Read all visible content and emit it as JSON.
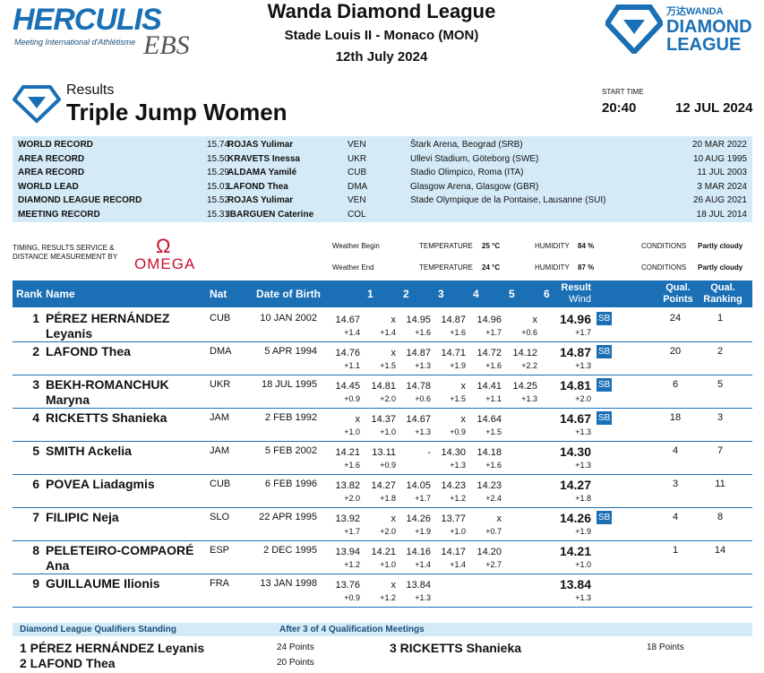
{
  "header": {
    "meeting_logo": "HERCULIS",
    "meeting_logo_sub": "Meeting International d'Athlétisme",
    "meeting_logo_ebs": "EBS",
    "league": "Wanda Diamond League",
    "venue": "Stade Louis II - Monaco (MON)",
    "date": "12th July 2024",
    "right_logo_wanda": "万达WANDA",
    "right_logo_line1": "DIAMOND",
    "right_logo_line2": "LEAGUE"
  },
  "event": {
    "results_label": "Results",
    "title": "Triple Jump Women",
    "start_time_label": "START TIME",
    "start_time": "20:40",
    "start_date": "12 JUL 2024"
  },
  "records": [
    {
      "name": "WORLD RECORD",
      "perf": "15.74",
      "athlete": "ROJAS Yulimar",
      "nat": "VEN",
      "venue": "Štark Arena, Beograd (SRB)",
      "date": "20 MAR 2022"
    },
    {
      "name": "AREA RECORD",
      "perf": "15.50",
      "athlete": "KRAVETS Inessa",
      "nat": "UKR",
      "venue": "Ullevi Stadium, Göteborg (SWE)",
      "date": "10 AUG 1995"
    },
    {
      "name": "AREA RECORD",
      "perf": "15.29",
      "athlete": "ALDAMA Yamilé",
      "nat": "CUB",
      "venue": "Stadio Olimpico, Roma (ITA)",
      "date": "11 JUL 2003"
    },
    {
      "name": "WORLD LEAD",
      "perf": "15.01",
      "athlete": "LAFOND Thea",
      "nat": "DMA",
      "venue": "Glasgow Arena, Glasgow (GBR)",
      "date": "3 MAR 2024"
    },
    {
      "name": "DIAMOND LEAGUE RECORD",
      "perf": "15.52",
      "athlete": "ROJAS Yulimar",
      "nat": "VEN",
      "venue": "Stade Olympique de la Pontaise, Lausanne (SUI)",
      "date": "26 AUG 2021"
    },
    {
      "name": "MEETING RECORD",
      "perf": "15.31",
      "athlete": "IBARGUEN Caterine",
      "nat": "COL",
      "venue": "",
      "date": "18 JUL 2014"
    }
  ],
  "timing": {
    "text": "TIMING, RESULTS SERVICE & DISTANCE MEASUREMENT BY",
    "omega": "OMEGA",
    "omega_symbol": "Ω"
  },
  "weather": {
    "begin_label": "Weather Begin",
    "end_label": "Weather End",
    "temp_label": "TEMPERATURE",
    "humidity_label": "HUMIDITY",
    "conditions_label": "CONDITIONS",
    "begin_temp": "25 °C",
    "begin_humidity": "84 %",
    "begin_conditions": "Partly cloudy",
    "end_temp": "24 °C",
    "end_humidity": "87 %",
    "end_conditions": "Partly cloudy"
  },
  "table_headers": {
    "rank": "Rank",
    "name": "Name",
    "nat": "Nat",
    "dob": "Date of Birth",
    "a1": "1",
    "a2": "2",
    "a3": "3",
    "a4": "4",
    "a5": "5",
    "a6": "6",
    "result": "Result",
    "wind": "Wind",
    "qual_points_1": "Qual.",
    "qual_points_2": "Points",
    "qual_rank_1": "Qual.",
    "qual_rank_2": "Ranking"
  },
  "athletes": [
    {
      "rank": "1",
      "name": "PÉREZ HERNÁNDEZ Leyanis",
      "nat": "CUB",
      "dob": "10 JAN 2002",
      "att": [
        "14.67",
        "x",
        "14.95",
        "14.87",
        "14.96",
        "x"
      ],
      "wind": [
        "+1.4",
        "+1.4",
        "+1.6",
        "+1.6",
        "+1.7",
        "+0.6"
      ],
      "result": "14.96",
      "rwind": "+1.7",
      "sb": "SB",
      "qp": "24",
      "qr": "1"
    },
    {
      "rank": "2",
      "name": "LAFOND Thea",
      "nat": "DMA",
      "dob": "5 APR 1994",
      "att": [
        "14.76",
        "x",
        "14.87",
        "14.71",
        "14.72",
        "14.12"
      ],
      "wind": [
        "+1.1",
        "+1.5",
        "+1.3",
        "+1.9",
        "+1.6",
        "+2.2"
      ],
      "result": "14.87",
      "rwind": "+1.3",
      "sb": "SB",
      "qp": "20",
      "qr": "2"
    },
    {
      "rank": "3",
      "name": "BEKH-ROMANCHUK Maryna",
      "nat": "UKR",
      "dob": "18 JUL 1995",
      "att": [
        "14.45",
        "14.81",
        "14.78",
        "x",
        "14.41",
        "14.25"
      ],
      "wind": [
        "+0.9",
        "+2.0",
        "+0.6",
        "+1.5",
        "+1.1",
        "+1.3"
      ],
      "result": "14.81",
      "rwind": "+2.0",
      "sb": "SB",
      "qp": "6",
      "qr": "5"
    },
    {
      "rank": "4",
      "name": "RICKETTS Shanieka",
      "nat": "JAM",
      "dob": "2 FEB 1992",
      "att": [
        "x",
        "14.37",
        "14.67",
        "x",
        "14.64",
        ""
      ],
      "wind": [
        "+1.0",
        "+1.0",
        "+1.3",
        "+0.9",
        "+1.5",
        ""
      ],
      "result": "14.67",
      "rwind": "+1.3",
      "sb": "SB",
      "qp": "18",
      "qr": "3"
    },
    {
      "rank": "5",
      "name": "SMITH Ackelia",
      "nat": "JAM",
      "dob": "5 FEB 2002",
      "att": [
        "14.21",
        "13.11",
        "-",
        "14.30",
        "14.18",
        ""
      ],
      "wind": [
        "+1.6",
        "+0.9",
        "",
        "+1.3",
        "+1.6",
        ""
      ],
      "result": "14.30",
      "rwind": "+1.3",
      "sb": "",
      "qp": "4",
      "qr": "7"
    },
    {
      "rank": "6",
      "name": "POVEA Liadagmis",
      "nat": "CUB",
      "dob": "6 FEB 1996",
      "att": [
        "13.82",
        "14.27",
        "14.05",
        "14.23",
        "14.23",
        ""
      ],
      "wind": [
        "+2.0",
        "+1.8",
        "+1.7",
        "+1.2",
        "+2.4",
        ""
      ],
      "result": "14.27",
      "rwind": "+1.8",
      "sb": "",
      "qp": "3",
      "qr": "11"
    },
    {
      "rank": "7",
      "name": "FILIPIC Neja",
      "nat": "SLO",
      "dob": "22 APR 1995",
      "att": [
        "13.92",
        "x",
        "14.26",
        "13.77",
        "x",
        ""
      ],
      "wind": [
        "+1.7",
        "+2.0",
        "+1.9",
        "+1.0",
        "+0.7",
        ""
      ],
      "result": "14.26",
      "rwind": "+1.9",
      "sb": "SB",
      "qp": "4",
      "qr": "8"
    },
    {
      "rank": "8",
      "name": "PELETEIRO-COMPAORÉ Ana",
      "nat": "ESP",
      "dob": "2 DEC 1995",
      "att": [
        "13.94",
        "14.21",
        "14.16",
        "14.17",
        "14.20",
        ""
      ],
      "wind": [
        "+1.2",
        "+1.0",
        "+1.4",
        "+1.4",
        "+2.7",
        ""
      ],
      "result": "14.21",
      "rwind": "+1.0",
      "sb": "",
      "qp": "1",
      "qr": "14"
    },
    {
      "rank": "9",
      "name": "GUILLAUME Ilionis",
      "nat": "FRA",
      "dob": "13 JAN 1998",
      "att": [
        "13.76",
        "x",
        "13.84",
        "",
        "",
        ""
      ],
      "wind": [
        "+0.9",
        "+1.2",
        "+1.3",
        "",
        "",
        ""
      ],
      "result": "13.84",
      "rwind": "+1.3",
      "sb": "",
      "qp": "",
      "qr": ""
    }
  ],
  "standing": {
    "title": "Diamond League Qualifiers Standing",
    "subtitle": "After 3 of 4 Qualification Meetings",
    "entries": [
      {
        "label": "1 PÉREZ HERNÁNDEZ Leyanis",
        "points": "24 Points"
      },
      {
        "label": "2 LAFOND Thea",
        "points": "20 Points"
      },
      {
        "label": "3 RICKETTS Shanieka",
        "points": "18 Points"
      }
    ]
  },
  "colors": {
    "accent": "#1a6fb5",
    "records_bg": "#d4ebf7",
    "omega": "#c8102e"
  }
}
